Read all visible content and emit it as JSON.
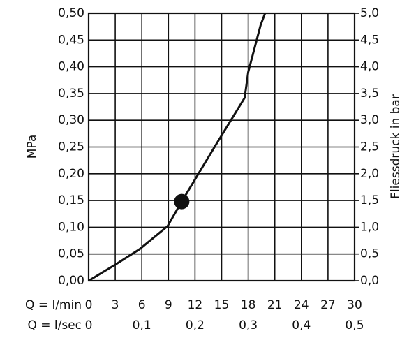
{
  "chart_data": {
    "type": "line",
    "x_label": "Q = l/min",
    "x2_label": "Q = l/sec",
    "y_label": "MPa",
    "y2_label": "Fliessdruck in bar",
    "xlim": [
      0,
      30
    ],
    "xticks": [
      0,
      3,
      6,
      9,
      12,
      15,
      18,
      21,
      24,
      27,
      30
    ],
    "x2lim": [
      0,
      0.5
    ],
    "x2ticks": [
      0,
      {
        "value": 0.1,
        "label": "0,1"
      },
      {
        "value": 0.2,
        "label": "0,2"
      },
      {
        "value": 0.3,
        "label": "0,3"
      },
      {
        "value": 0.4,
        "label": "0,4"
      },
      {
        "value": 0.5,
        "label": "0,5"
      }
    ],
    "ylim": [
      0,
      0.5
    ],
    "yticks": [
      {
        "value": 0,
        "label": "0,00"
      },
      {
        "value": 0.05,
        "label": "0,05"
      },
      {
        "value": 0.1,
        "label": "0,10"
      },
      {
        "value": 0.15,
        "label": "0,15"
      },
      {
        "value": 0.2,
        "label": "0,20"
      },
      {
        "value": 0.25,
        "label": "0,25"
      },
      {
        "value": 0.3,
        "label": "0,30"
      },
      {
        "value": 0.35,
        "label": "0,35"
      },
      {
        "value": 0.4,
        "label": "0,40"
      },
      {
        "value": 0.45,
        "label": "0,45"
      },
      {
        "value": 0.5,
        "label": "0,50"
      }
    ],
    "y2lim": [
      0,
      5
    ],
    "y2ticks": [
      {
        "value": 0,
        "label": "0,0"
      },
      {
        "value": 0.5,
        "label": "0,5"
      },
      {
        "value": 1,
        "label": "1,0"
      },
      {
        "value": 1.5,
        "label": "1,5"
      },
      {
        "value": 2,
        "label": "2,0"
      },
      {
        "value": 2.5,
        "label": "2,5"
      },
      {
        "value": 3,
        "label": "3,0"
      },
      {
        "value": 3.5,
        "label": "3,5"
      },
      {
        "value": 4,
        "label": "4,0"
      },
      {
        "value": 4.5,
        "label": "4,5"
      },
      {
        "value": 5,
        "label": "5,0"
      }
    ],
    "grid": true,
    "x": [
      0,
      3,
      5.75,
      8.9,
      10.5,
      14.2,
      17.6,
      18,
      19.4,
      19.9
    ],
    "series": [
      {
        "color": "#111111",
        "values": [
          0,
          0.03,
          0.059,
          0.102,
          0.148,
          0.25,
          0.342,
          0.39,
          0.478,
          0.5
        ]
      }
    ],
    "highlight": {
      "x": 10.5,
      "value": 0.148,
      "color": "#111111"
    }
  }
}
